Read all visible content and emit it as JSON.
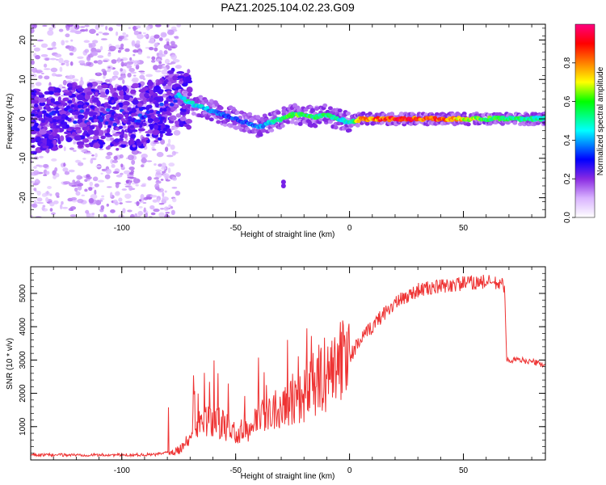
{
  "title": "PAZ1.2025.104.02.23.G09",
  "chart_data": [
    {
      "type": "heatmap",
      "xlabel": "Height of straight line (km)",
      "ylabel": "Frequency (Hz)",
      "xlim": [
        -140,
        86
      ],
      "ylim": [
        -25,
        24
      ],
      "xticks": [
        -100,
        -50,
        0,
        50
      ],
      "yticks": [
        -20,
        -10,
        0,
        10,
        20
      ],
      "colorbar": {
        "label": "Normalized spectral amplitude",
        "range": [
          0,
          1
        ],
        "ticks": [
          "0.0",
          "0.2",
          "0.4",
          "0.6",
          "0.8"
        ],
        "colors": [
          "#ffffff",
          "#8a2be2",
          "#0000ff",
          "#00ffff",
          "#00ff00",
          "#ffff00",
          "#ff8000",
          "#ff0000",
          "#ff0080"
        ]
      },
      "ridge": {
        "height_km": [
          -140,
          -130,
          -120,
          -110,
          -100,
          -90,
          -80,
          -75,
          -70,
          -65,
          -60,
          -55,
          -50,
          -45,
          -40,
          -35,
          -30,
          -25,
          -20,
          -15,
          -10,
          -5,
          0,
          5,
          20,
          40,
          60,
          86
        ],
        "frequency_hz": [
          -1,
          0,
          1,
          1,
          0,
          1,
          3,
          6,
          4,
          3,
          2,
          1,
          0,
          -1,
          -2,
          -1,
          0,
          1,
          1,
          0.5,
          1,
          0,
          -1,
          0,
          0,
          0,
          0,
          0
        ],
        "amplitude": [
          0.2,
          0.2,
          0.2,
          0.2,
          0.2,
          0.2,
          0.25,
          0.45,
          0.5,
          0.45,
          0.4,
          0.35,
          0.35,
          0.35,
          0.4,
          0.45,
          0.55,
          0.6,
          0.6,
          0.55,
          0.55,
          0.5,
          0.5,
          0.8,
          0.9,
          0.85,
          0.6,
          0.5
        ]
      },
      "weak_blobs": [
        {
          "height_km": -29,
          "frequency_hz": -16
        },
        {
          "height_km": -29,
          "frequency_hz": -17
        }
      ]
    },
    {
      "type": "line",
      "xlabel": "Height of straight line (km)",
      "ylabel": "SNR (10 * v/v)",
      "xlim": [
        -140,
        86
      ],
      "ylim": [
        0,
        5800
      ],
      "xticks": [
        -100,
        -50,
        0,
        50
      ],
      "yticks": [
        1000,
        2000,
        3000,
        4000,
        5000
      ],
      "color": "#ee3333",
      "series": [
        {
          "x": [
            -140,
            -120,
            -100,
            -85,
            -75,
            -70,
            -65,
            -60,
            -55,
            -50,
            -45,
            -40,
            -35,
            -30,
            -25,
            -20,
            -15,
            -10,
            -5,
            0,
            5,
            10,
            15,
            20,
            25,
            30,
            40,
            50,
            60,
            68,
            69,
            70,
            75,
            80,
            86
          ],
          "y": [
            150,
            150,
            150,
            160,
            300,
            600,
            1100,
            1200,
            1000,
            800,
            900,
            1200,
            1500,
            1700,
            1900,
            2000,
            2300,
            2600,
            2900,
            3100,
            3600,
            4000,
            4400,
            4700,
            4900,
            5100,
            5200,
            5300,
            5350,
            5250,
            3000,
            3000,
            3000,
            2950,
            2850
          ]
        }
      ]
    }
  ]
}
